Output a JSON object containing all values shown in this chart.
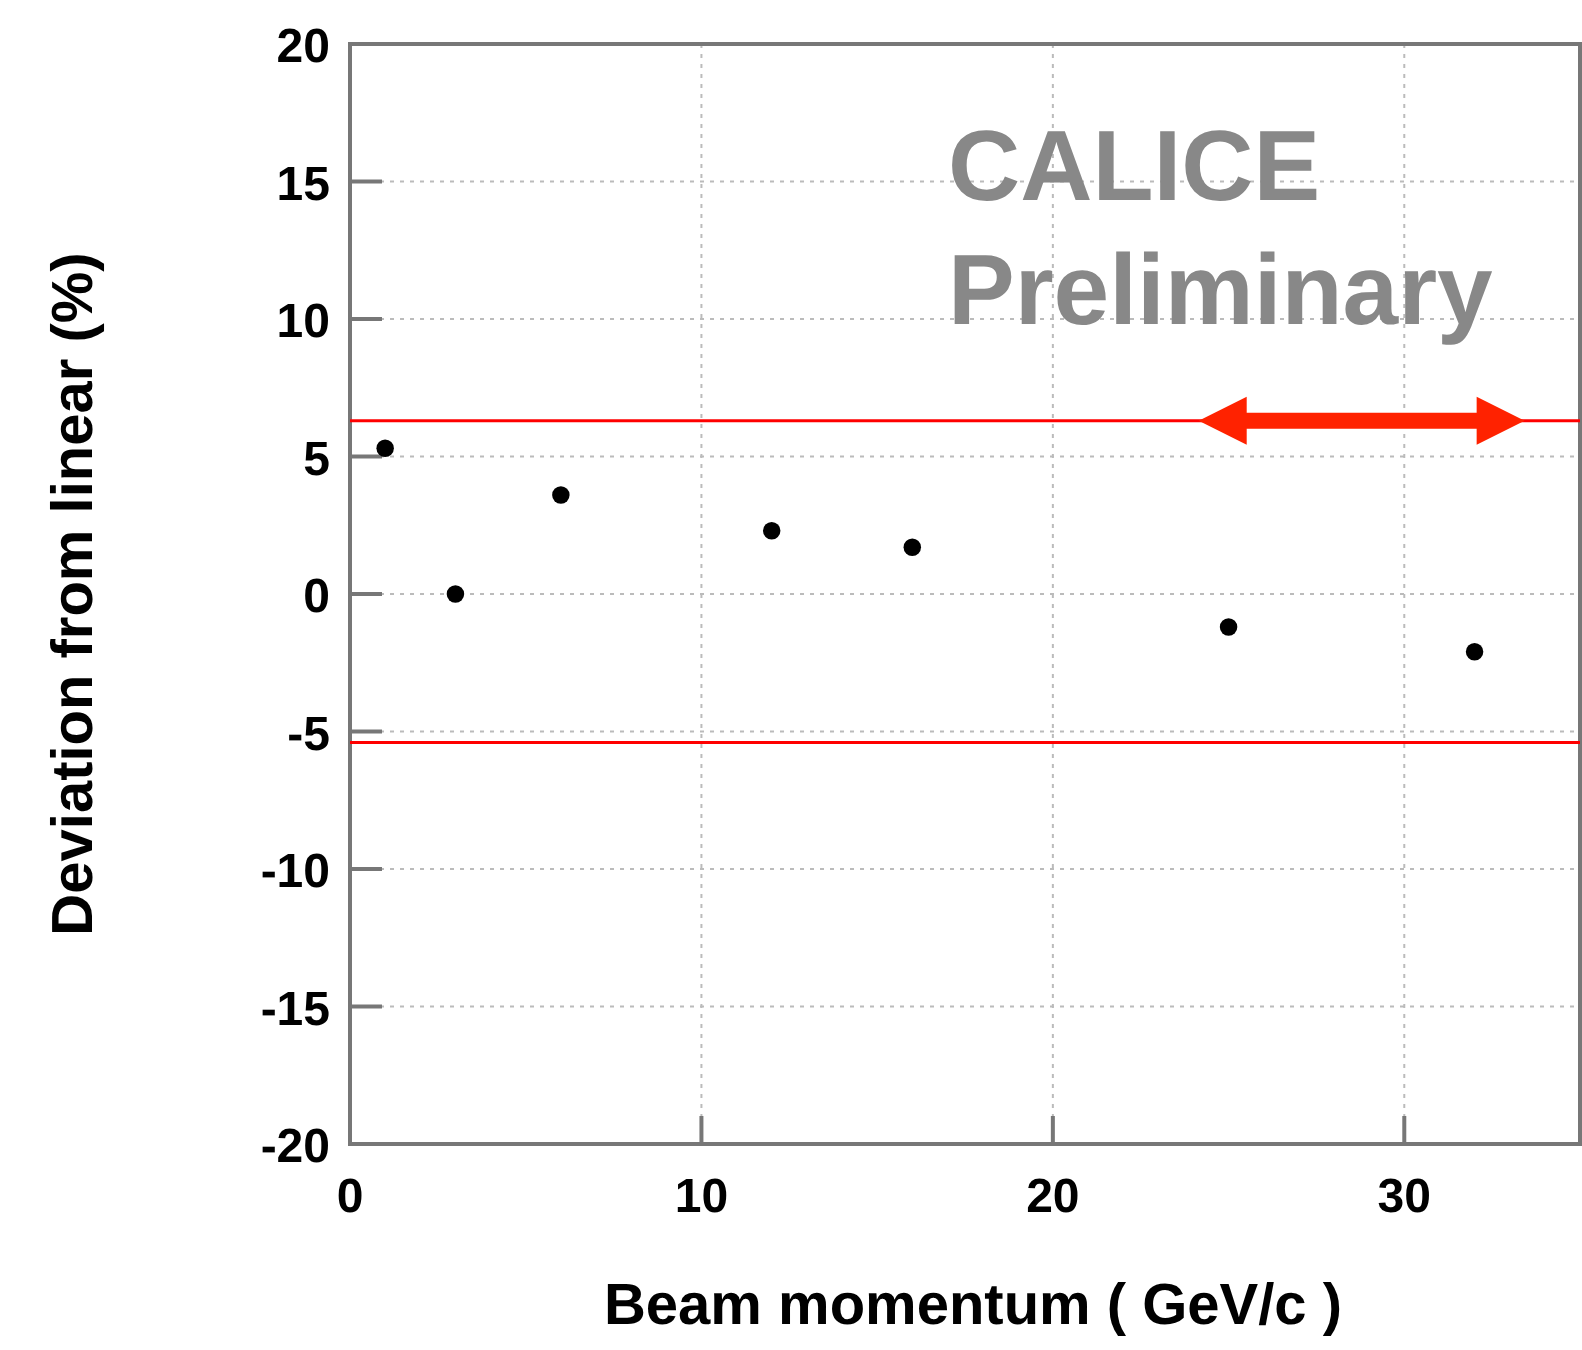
{
  "chart_data": {
    "type": "scatter",
    "xlabel": "Beam momentum ( GeV/c )",
    "ylabel": "Deviation from linear (%)",
    "x": [
      1,
      3,
      6,
      12,
      16,
      25,
      32
    ],
    "series": [
      {
        "color": "#000000",
        "values": [
          5.3,
          0.0,
          3.6,
          2.3,
          1.7,
          -1.2,
          -2.1
        ]
      }
    ],
    "xlim": [
      0,
      35
    ],
    "xticks": [
      0,
      10,
      20,
      30
    ],
    "ylim": [
      -20,
      20
    ],
    "yticks": [
      -20,
      -15,
      -10,
      -5,
      0,
      5,
      10,
      15,
      20
    ],
    "grid": true,
    "marker": "circle",
    "ref_lines": [
      {
        "axis": "y",
        "value": 6.3,
        "color": "#ff0000"
      },
      {
        "axis": "y",
        "value": -5.4,
        "color": "#ff0000"
      }
    ],
    "annotations": [
      "CALICE",
      "Preliminary"
    ]
  }
}
